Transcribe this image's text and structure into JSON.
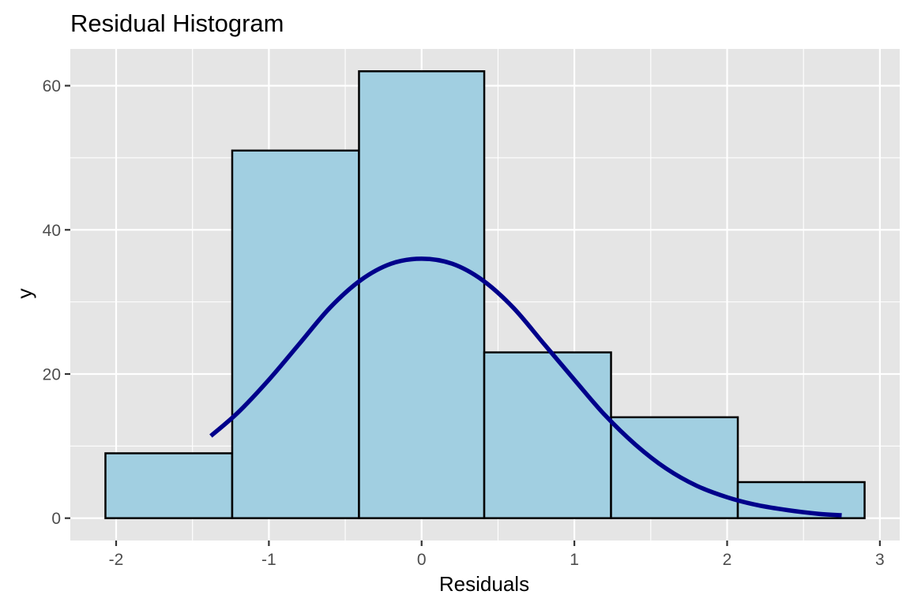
{
  "chart_data": {
    "type": "bar",
    "title": "Residual Histogram",
    "xlabel": "Residuals",
    "ylabel": "y",
    "xlim": [
      -2.3,
      3.13
    ],
    "ylim": [
      -3.1,
      65.1
    ],
    "x_ticks": [
      -2,
      -1,
      0,
      1,
      2,
      3
    ],
    "x_tick_labels": [
      "-2",
      "-1",
      "0",
      "1",
      "2",
      "3"
    ],
    "y_ticks": [
      0,
      20,
      40,
      60
    ],
    "y_tick_labels": [
      "0",
      "20",
      "40",
      "60"
    ],
    "grid": true,
    "legend": "none",
    "bins": [
      {
        "x0": -2.07,
        "x1": -1.24,
        "count": 9
      },
      {
        "x0": -1.24,
        "x1": -0.41,
        "count": 51
      },
      {
        "x0": -0.41,
        "x1": 0.41,
        "count": 62
      },
      {
        "x0": 0.41,
        "x1": 1.24,
        "count": 23
      },
      {
        "x0": 1.24,
        "x1": 2.07,
        "count": 14
      },
      {
        "x0": 2.07,
        "x1": 2.9,
        "count": 5
      }
    ],
    "density_curve": {
      "x": [
        -1.38,
        -1.2,
        -1.0,
        -0.8,
        -0.6,
        -0.4,
        -0.2,
        0.0,
        0.2,
        0.4,
        0.6,
        0.8,
        1.0,
        1.2,
        1.4,
        1.6,
        1.8,
        2.0,
        2.2,
        2.4,
        2.6,
        2.75
      ],
      "y": [
        11.4,
        14.7,
        19.2,
        24.2,
        29.2,
        33.0,
        35.3,
        36.0,
        35.3,
        33.0,
        29.2,
        24.2,
        19.2,
        14.3,
        10.2,
        6.9,
        4.5,
        2.9,
        1.8,
        1.1,
        0.6,
        0.4
      ]
    },
    "colors": {
      "panel_background": "#e5e5e5",
      "grid": "#ffffff",
      "bar_fill": "#a1cfe1",
      "bar_outline": "#000000",
      "curve": "#00008b",
      "tick_text": "#4d4d4d"
    }
  }
}
